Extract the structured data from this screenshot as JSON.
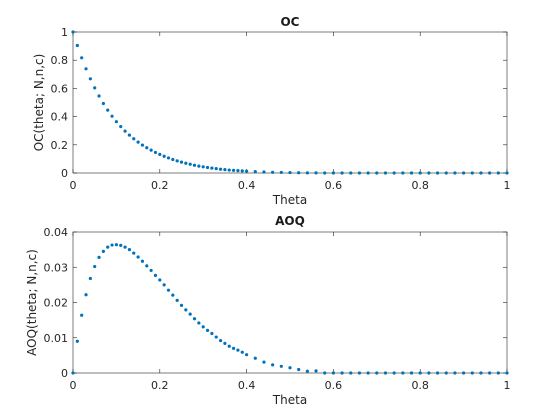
{
  "chart_data": [
    {
      "type": "scatter",
      "title": "OC",
      "xlabel": "Theta",
      "ylabel": "OC(theta; N,n,c)",
      "xlim": [
        0,
        1
      ],
      "ylim": [
        0,
        1
      ],
      "xticks": [
        "0",
        "0.2",
        "0.4",
        "0.6",
        "0.8",
        "1"
      ],
      "yticks": [
        "0",
        "0.2",
        "0.4",
        "0.6",
        "0.8",
        "1"
      ],
      "grid": false,
      "marker_color": "#0072BD",
      "series": [
        {
          "x": [
            0,
            0.01,
            0.02,
            0.03,
            0.04,
            0.05,
            0.06,
            0.07,
            0.08,
            0.09,
            0.1,
            0.11,
            0.12,
            0.13,
            0.14,
            0.15,
            0.16,
            0.17,
            0.18,
            0.19,
            0.2,
            0.21,
            0.22,
            0.23,
            0.24,
            0.25,
            0.26,
            0.27,
            0.28,
            0.29,
            0.3,
            0.31,
            0.32,
            0.33,
            0.34,
            0.35,
            0.36,
            0.37,
            0.38,
            0.39,
            0.4,
            0.42,
            0.44,
            0.46,
            0.48,
            0.5,
            0.52,
            0.54,
            0.56,
            0.58,
            0.6,
            0.62,
            0.64,
            0.66,
            0.68,
            0.7,
            0.72,
            0.74,
            0.76,
            0.78,
            0.8,
            0.82,
            0.84,
            0.86,
            0.88,
            0.9,
            0.92,
            0.94,
            0.96,
            0.98,
            1.0
          ],
          "y": [
            1.0,
            0.904,
            0.817,
            0.739,
            0.668,
            0.604,
            0.546,
            0.493,
            0.446,
            0.403,
            0.364,
            0.329,
            0.297,
            0.269,
            0.243,
            0.219,
            0.198,
            0.179,
            0.162,
            0.146,
            0.132,
            0.119,
            0.107,
            0.096,
            0.086,
            0.077,
            0.069,
            0.062,
            0.055,
            0.049,
            0.044,
            0.039,
            0.035,
            0.031,
            0.027,
            0.024,
            0.021,
            0.019,
            0.017,
            0.015,
            0.013,
            0.01,
            0.007,
            0.005,
            0.004,
            0.003,
            0.002,
            0.001,
            0.001,
            0.0,
            0.0,
            0.0,
            0.0,
            0.0,
            0.0,
            0.0,
            0.0,
            0.0,
            0.0,
            0.0,
            0.0,
            0.0,
            0.0,
            0.0,
            0.0,
            0.0,
            0.0,
            0.0,
            0.0,
            0.0,
            0.0
          ]
        }
      ]
    },
    {
      "type": "scatter",
      "title": "AOQ",
      "xlabel": "Theta",
      "ylabel": "AOQ(theta; N,n,c)",
      "xlim": [
        0,
        1
      ],
      "ylim": [
        0,
        0.04
      ],
      "xticks": [
        "0",
        "0.2",
        "0.4",
        "0.6",
        "0.8",
        "1"
      ],
      "yticks": [
        "0",
        "0.01",
        "0.02",
        "0.03",
        "0.04"
      ],
      "grid": false,
      "marker_color": "#0072BD",
      "series": [
        {
          "x": [
            0,
            0.01,
            0.02,
            0.03,
            0.04,
            0.05,
            0.06,
            0.07,
            0.08,
            0.09,
            0.1,
            0.11,
            0.12,
            0.13,
            0.14,
            0.15,
            0.16,
            0.17,
            0.18,
            0.19,
            0.2,
            0.21,
            0.22,
            0.23,
            0.24,
            0.25,
            0.26,
            0.27,
            0.28,
            0.29,
            0.3,
            0.31,
            0.32,
            0.33,
            0.34,
            0.35,
            0.36,
            0.37,
            0.38,
            0.39,
            0.4,
            0.42,
            0.44,
            0.46,
            0.48,
            0.5,
            0.52,
            0.54,
            0.56,
            0.58,
            0.6,
            0.62,
            0.64,
            0.66,
            0.68,
            0.7,
            0.72,
            0.74,
            0.76,
            0.78,
            0.8,
            0.82,
            0.84,
            0.86,
            0.88,
            0.9,
            0.92,
            0.94,
            0.96,
            0.98,
            1.0
          ],
          "y": [
            0.0,
            0.009,
            0.0164,
            0.0222,
            0.0268,
            0.0302,
            0.0328,
            0.0345,
            0.0357,
            0.0363,
            0.0364,
            0.0362,
            0.0357,
            0.035,
            0.034,
            0.0329,
            0.0317,
            0.0304,
            0.0291,
            0.0277,
            0.0264,
            0.025,
            0.0235,
            0.0221,
            0.0206,
            0.0192,
            0.0179,
            0.0167,
            0.0154,
            0.0142,
            0.0131,
            0.0121,
            0.0112,
            0.0102,
            0.0092,
            0.0084,
            0.0076,
            0.007,
            0.0065,
            0.0059,
            0.0052,
            0.0042,
            0.0031,
            0.0023,
            0.0019,
            0.0015,
            0.001,
            0.0005,
            0.0006,
            0.0,
            0.0,
            0.0,
            0.0,
            0.0,
            0.0,
            0.0,
            0.0,
            0.0,
            0.0,
            0.0,
            0.0,
            0.0,
            0.0,
            0.0,
            0.0,
            0.0,
            0.0,
            0.0,
            0.0,
            0.0,
            0.0
          ]
        }
      ]
    }
  ]
}
